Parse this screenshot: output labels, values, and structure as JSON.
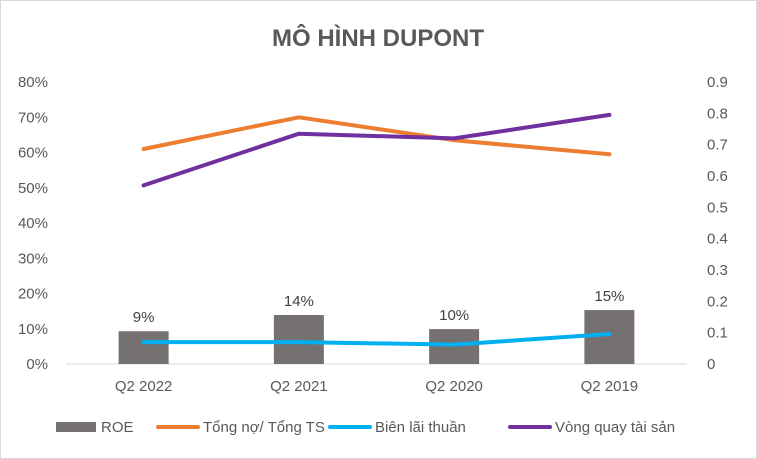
{
  "chart_data": {
    "type": "bar",
    "title": "MÔ HÌNH DUPONT",
    "categories": [
      "Q2 2022",
      "Q2 2021",
      "Q2 2020",
      "Q2 2019"
    ],
    "y_left": {
      "range": [
        0,
        0.8
      ],
      "ticks": [
        0,
        0.1,
        0.2,
        0.3,
        0.4,
        0.5,
        0.6,
        0.7,
        0.8
      ],
      "tick_labels": [
        "0%",
        "10%",
        "20%",
        "30%",
        "40%",
        "50%",
        "60%",
        "70%",
        "80%"
      ]
    },
    "y_right": {
      "range": [
        0,
        0.9
      ],
      "ticks": [
        0,
        0.1,
        0.2,
        0.3,
        0.4,
        0.5,
        0.6,
        0.7,
        0.8,
        0.9
      ],
      "tick_labels": [
        "0",
        "0.1",
        "0.2",
        "0.3",
        "0.4",
        "0.5",
        "0.6",
        "0.7",
        "0.8",
        "0.9"
      ]
    },
    "grid": false,
    "legend_position": "bottom",
    "series": [
      {
        "name": "ROE",
        "kind": "bar",
        "axis": "left",
        "color": "#767171",
        "values": [
          0.093,
          0.139,
          0.099,
          0.153
        ],
        "data_labels": [
          "9%",
          "14%",
          "10%",
          "15%"
        ]
      },
      {
        "name": "Tổng nợ/ Tổng TS",
        "kind": "line",
        "axis": "left",
        "color": "#ed7d31",
        "values": [
          0.61,
          0.7,
          0.635,
          0.595
        ]
      },
      {
        "name": "Biên lãi thuần",
        "kind": "line",
        "axis": "left",
        "color": "#00b0f0",
        "values": [
          0.062,
          0.062,
          0.055,
          0.085
        ]
      },
      {
        "name": "Vòng quay tài sản",
        "kind": "line",
        "axis": "right",
        "color": "#7030a0",
        "values": [
          0.57,
          0.735,
          0.72,
          0.795
        ]
      }
    ]
  }
}
